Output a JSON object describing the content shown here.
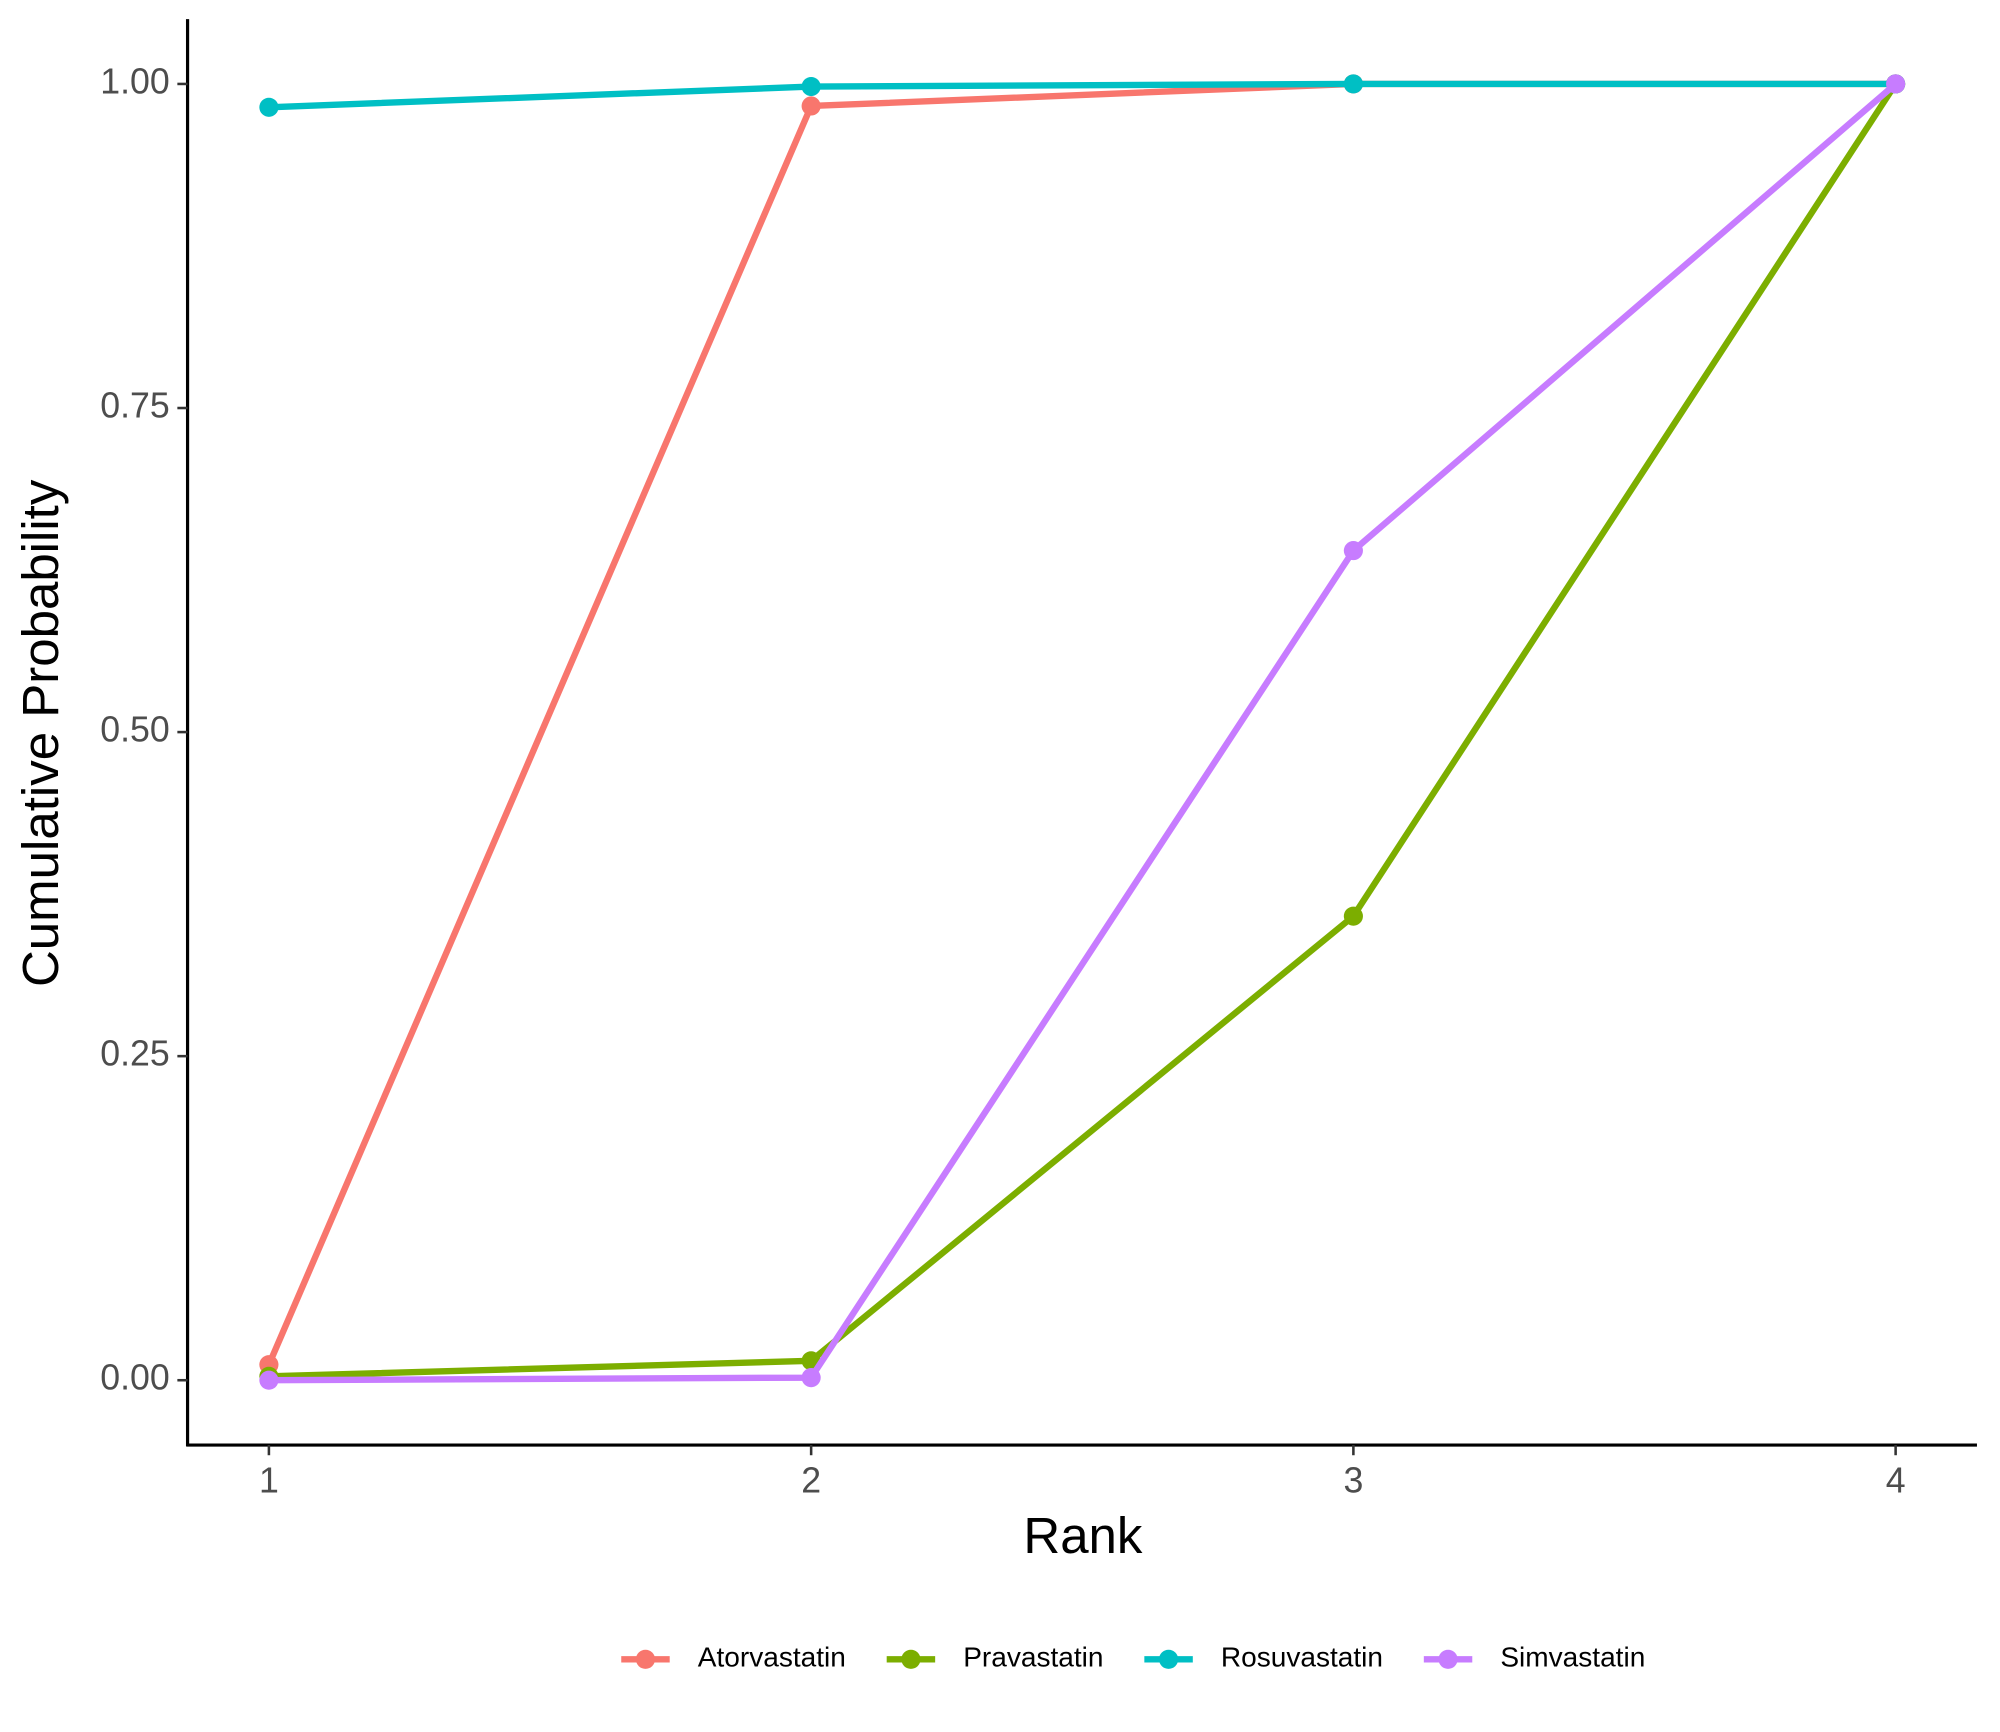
{
  "chart_data": {
    "type": "line",
    "x_label": "Rank",
    "y_label": "Cumulative Probability",
    "x": [
      1,
      2,
      3,
      4
    ],
    "series": [
      {
        "name": "Atorvastatin",
        "color": "#F8766D",
        "values": [
          0.012,
          0.983,
          1.0,
          1.0
        ]
      },
      {
        "name": "Pravastatin",
        "color": "#7CAE00",
        "values": [
          0.003,
          0.015,
          0.358,
          1.0
        ]
      },
      {
        "name": "Rosuvastatin",
        "color": "#00BFC4",
        "values": [
          0.982,
          0.998,
          1.0,
          1.0
        ]
      },
      {
        "name": "Simvastatin",
        "color": "#C77CFF",
        "values": [
          0.0,
          0.002,
          0.64,
          1.0
        ]
      }
    ],
    "xlim": [
      0.85,
      4.15
    ],
    "xticks": [
      1,
      2,
      3,
      4
    ],
    "ylim": [
      -0.05,
      1.05
    ],
    "yticks": [
      {
        "value": 0,
        "label": "0.00"
      },
      {
        "value": 0.25,
        "label": "0.25"
      },
      {
        "value": 0.5,
        "label": "0.50"
      },
      {
        "value": 0.75,
        "label": "0.75"
      },
      {
        "value": 1,
        "label": "1.00"
      }
    ],
    "grid": false,
    "legend": "bottom"
  }
}
